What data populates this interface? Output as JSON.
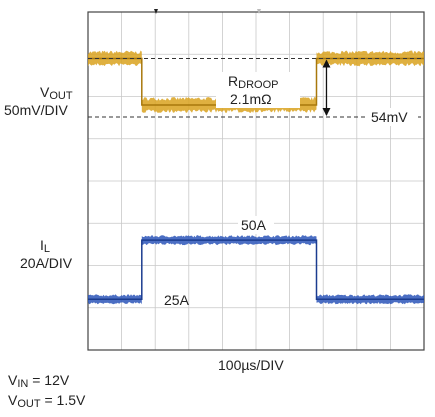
{
  "chart_data": {
    "type": "line",
    "title": "",
    "timebase": {
      "label": "100µs/DIV",
      "value_us_per_div": 100
    },
    "grid": true,
    "divisions": {
      "x": 10,
      "y": 8
    },
    "conditions": [
      {
        "base": "V",
        "sub": "IN",
        "rest": " = 12V"
      },
      {
        "base": "V",
        "sub": "OUT",
        "rest": " = 1.5V"
      }
    ],
    "channels": [
      {
        "name_base": "V",
        "name_sub": "OUT",
        "scale": "50mV/DIV",
        "color": "#d9a21f",
        "x_div": [
          0,
          1.6,
          1.6,
          6.8,
          6.8,
          10
        ],
        "level_div": [
          6.9,
          6.9,
          5.8,
          5.8,
          6.9,
          6.9
        ]
      },
      {
        "name_base": "I",
        "name_sub": "L",
        "scale": "20A/DIV",
        "color": "#2b55b8",
        "x_div": [
          0,
          1.6,
          1.6,
          6.8,
          6.8,
          10
        ],
        "level_div": [
          1.2,
          1.2,
          2.6,
          2.6,
          1.2,
          1.2
        ]
      }
    ],
    "annotations": {
      "rdroop_base": "R",
      "rdroop_sub": "DROOP",
      "rdroop_value": "2.1mΩ",
      "droop": "54mV",
      "high_current": "50A",
      "low_current": "25A"
    }
  }
}
